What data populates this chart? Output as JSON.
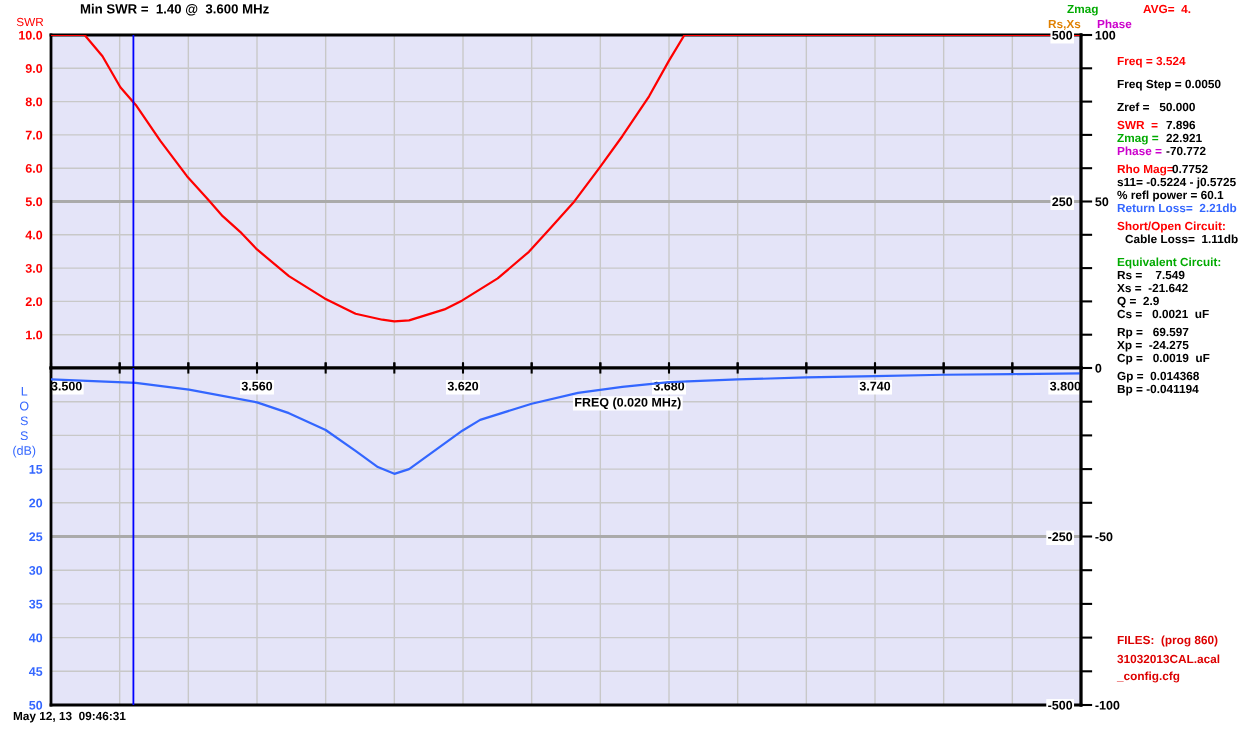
{
  "chart_data": [
    {
      "type": "line",
      "title": "Min SWR =  1.40 @  3.600 MHz",
      "ylabel": "SWR",
      "xlim": [
        3.5,
        3.8
      ],
      "xticks": [
        {
          "value": 3.5,
          "label": null
        },
        {
          "value": 3.52,
          "label": null
        },
        {
          "value": 3.54,
          "label": null
        },
        {
          "value": 3.56,
          "label": null
        },
        {
          "value": 3.58,
          "label": null
        },
        {
          "value": 3.6,
          "label": null
        },
        {
          "value": 3.62,
          "label": null
        },
        {
          "value": 3.64,
          "label": null
        },
        {
          "value": 3.66,
          "label": null
        },
        {
          "value": 3.68,
          "label": null
        },
        {
          "value": 3.7,
          "label": null
        },
        {
          "value": 3.72,
          "label": null
        },
        {
          "value": 3.74,
          "label": null
        },
        {
          "value": 3.76,
          "label": null
        },
        {
          "value": 3.78,
          "label": null
        },
        {
          "value": 3.8,
          "label": null
        }
      ],
      "ylim": [
        0,
        10
      ],
      "yticks": [
        {
          "value": 1,
          "label": "1.0"
        },
        {
          "value": 2,
          "label": "2.0"
        },
        {
          "value": 3,
          "label": "3.0"
        },
        {
          "value": 4,
          "label": "4.0"
        },
        {
          "value": 5,
          "label": "5.0"
        },
        {
          "value": 6,
          "label": "6.0"
        },
        {
          "value": 7,
          "label": "7.0"
        },
        {
          "value": 8,
          "label": "8.0"
        },
        {
          "value": 9,
          "label": "9.0"
        },
        {
          "value": 10,
          "label": "10.0"
        }
      ],
      "y2lim": [
        0,
        500
      ],
      "y2ticks": [
        250,
        500
      ],
      "y3lim": [
        0,
        100
      ],
      "y3ticks": [
        0,
        {
          "value": 10,
          "label": null
        },
        {
          "value": 20,
          "label": null
        },
        {
          "value": 30,
          "label": null
        },
        {
          "value": 40,
          "label": null
        },
        50,
        {
          "value": 60,
          "label": null
        },
        {
          "value": 70,
          "label": null
        },
        {
          "value": 80,
          "label": null
        },
        {
          "value": 90,
          "label": null
        },
        100
      ],
      "tick_labels": "y",
      "grid": true,
      "legend": false,
      "ref_lines": [
        {
          "axis": "x",
          "value": 3.524,
          "color": "#0000ff"
        },
        {
          "axis": "y",
          "value": 5,
          "color": "#aaaaaa"
        }
      ],
      "series": [
        {
          "color": "#ff0000",
          "x": [
            3.5,
            3.5098,
            3.515,
            3.5202,
            3.5247,
            3.5318,
            3.5396,
            3.546,
            3.55,
            3.5551,
            3.56,
            3.5693,
            3.5797,
            3.5887,
            3.5965,
            3.6,
            3.6043,
            3.6146,
            3.6198,
            3.6301,
            3.6392,
            3.6457,
            3.6521,
            3.6599,
            3.6664,
            3.6742,
            3.68,
            3.6845,
            3.8
          ],
          "values": [
            10,
            10,
            9.36,
            8.43,
            7.9,
            6.83,
            5.76,
            5.03,
            4.56,
            4.09,
            3.56,
            2.76,
            2.09,
            1.63,
            1.45,
            1.4,
            1.43,
            1.76,
            2.03,
            2.69,
            3.49,
            4.23,
            4.96,
            6.03,
            6.96,
            8.16,
            9.23,
            10,
            10
          ]
        }
      ],
      "annotations": [
        "AVG=  4.",
        "Zmag",
        "Rs,Xs",
        "Phase",
        "Freq = 3.524",
        "Freq Step = 0.0050",
        "Zref =   50.000",
        "SWR  =",
        "7.896",
        "Zmag =",
        "22.921",
        "Phase =",
        "-70.772",
        "Rho Mag=",
        "0.7752",
        "s11= -0.5224 - j0.5725",
        "% refl power = 60.1",
        "Return Loss=  2.21db",
        "Short/Open Circuit:",
        "Cable Loss=  1.11db",
        "Equivalent Circuit:",
        "Rs =    7.549",
        "Xs =  -21.642",
        "Q =  2.9",
        "Cs =   0.0021  uF",
        "Rp =   69.597",
        "Xp =  -24.275",
        "Cp =   0.0019  uF",
        "Gp =  0.014368",
        "Bp = -0.041194"
      ]
    },
    {
      "type": "line",
      "xlabel": "FREQ (0.020 MHz)",
      "ylabel": "L\nO\nS\nS\n(dB)",
      "xlim": [
        3.5,
        3.8
      ],
      "xticks": [
        {
          "value": 3.5,
          "label": "3.500"
        },
        {
          "value": 3.52,
          "label": null
        },
        {
          "value": 3.54,
          "label": null
        },
        {
          "value": 3.56,
          "label": "3.560"
        },
        {
          "value": 3.58,
          "label": null
        },
        {
          "value": 3.6,
          "label": null
        },
        {
          "value": 3.62,
          "label": "3.620"
        },
        {
          "value": 3.64,
          "label": null
        },
        {
          "value": 3.66,
          "label": null
        },
        {
          "value": 3.68,
          "label": "3.680"
        },
        {
          "value": 3.7,
          "label": null
        },
        {
          "value": 3.72,
          "label": null
        },
        {
          "value": 3.74,
          "label": "3.740"
        },
        {
          "value": 3.76,
          "label": null
        },
        {
          "value": 3.78,
          "label": null
        },
        {
          "value": 3.8,
          "label": "3.800"
        }
      ],
      "ylim": [
        50,
        0
      ],
      "yticks": [
        {
          "value": 5,
          "label": null
        },
        {
          "value": 10,
          "label": null
        },
        15,
        20,
        25,
        30,
        35,
        40,
        45,
        50
      ],
      "y2lim": [
        -500,
        0
      ],
      "y2ticks": [
        -250,
        -500
      ],
      "y3lim": [
        -100,
        0
      ],
      "y3ticks": [
        {
          "value": -10,
          "label": null
        },
        {
          "value": -20,
          "label": null
        },
        {
          "value": -30,
          "label": null
        },
        {
          "value": -40,
          "label": null
        },
        -50,
        {
          "value": -60,
          "label": null
        },
        {
          "value": -70,
          "label": null
        },
        {
          "value": -80,
          "label": null
        },
        {
          "value": -90,
          "label": null
        },
        -100
      ],
      "grid": true,
      "legend": false,
      "ref_lines": [
        {
          "axis": "x",
          "value": 3.524,
          "color": "#0000ff"
        },
        {
          "axis": "y",
          "value": 25,
          "color": "#aaaaaa"
        }
      ],
      "series": [
        {
          "color": "#3366ff",
          "x": [
            3.5,
            3.5247,
            3.5402,
            3.56,
            3.5693,
            3.58,
            3.5887,
            3.5952,
            3.6,
            3.6043,
            3.6198,
            3.625,
            3.64,
            3.6535,
            3.6664,
            3.68,
            3.7,
            3.72,
            3.74,
            3.76,
            3.78,
            3.8
          ],
          "values": [
            1.7,
            2.2,
            3.2,
            5.1,
            6.7,
            9.2,
            12.3,
            14.7,
            15.7,
            15.0,
            9.3,
            7.7,
            5.3,
            3.7,
            2.8,
            2.1,
            1.7,
            1.4,
            1.2,
            1.0,
            0.9,
            0.8
          ]
        }
      ],
      "annotations": [
        "FILES:  (prog 860)",
        "31032013CAL.acal",
        "_config.cfg",
        "May 12, 13  09:46:31"
      ]
    }
  ]
}
